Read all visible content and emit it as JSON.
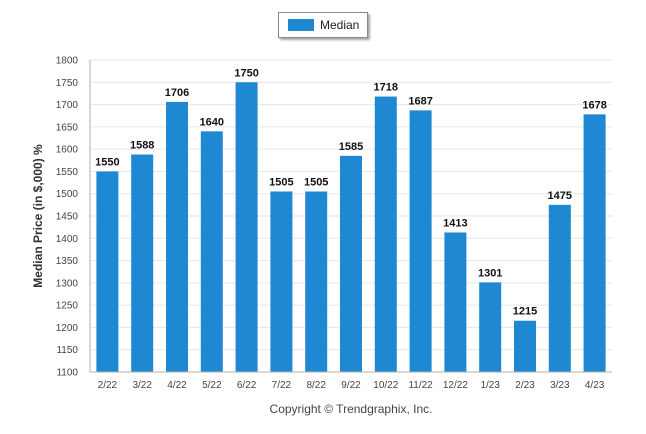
{
  "legend": {
    "label": "Median"
  },
  "copyright": "Copyright © Trendgraphix, Inc.",
  "colors": {
    "bar": "#1e88d2",
    "grid": "#e6e6e6",
    "axis": "#b0b0b0"
  },
  "chart_data": {
    "type": "bar",
    "title": "",
    "xlabel": "",
    "ylabel": "Median Price (in $,000) %",
    "ylim": [
      1100,
      1800
    ],
    "yticks": [
      1100,
      1150,
      1200,
      1250,
      1300,
      1350,
      1400,
      1450,
      1500,
      1550,
      1600,
      1650,
      1700,
      1750,
      1800
    ],
    "grid": true,
    "legend_position": "top-center",
    "categories": [
      "2/22",
      "3/22",
      "4/22",
      "5/22",
      "6/22",
      "7/22",
      "8/22",
      "9/22",
      "10/22",
      "11/22",
      "12/22",
      "1/23",
      "2/23",
      "3/23",
      "4/23"
    ],
    "series": [
      {
        "name": "Median",
        "values": [
          1550,
          1588,
          1706,
          1640,
          1750,
          1505,
          1505,
          1585,
          1718,
          1687,
          1413,
          1301,
          1215,
          1475,
          1678
        ]
      }
    ]
  }
}
